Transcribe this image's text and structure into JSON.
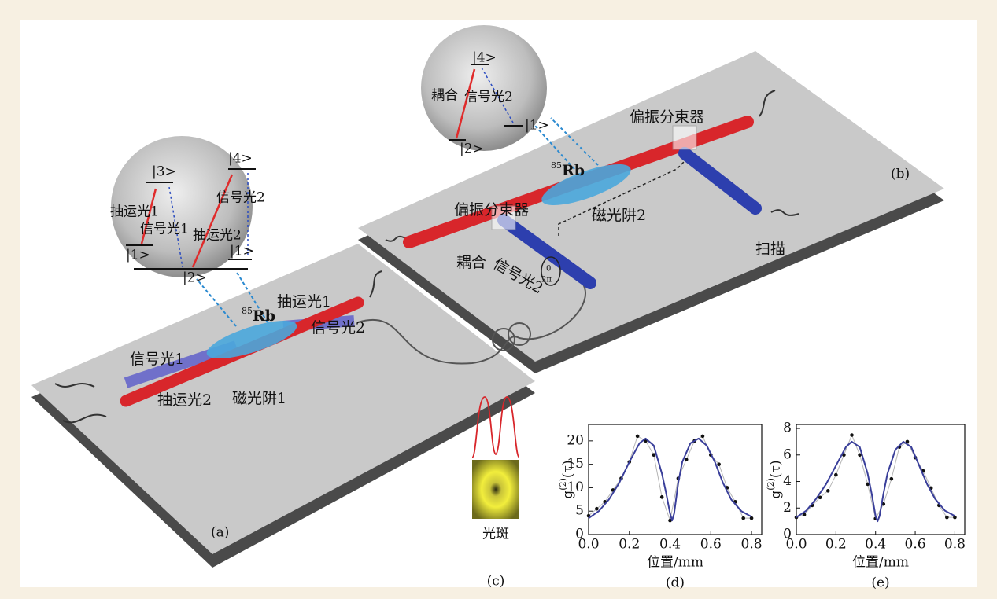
{
  "panels": {
    "a": "(a)",
    "b": "(b)",
    "c": "(c)"
  },
  "labels": {
    "pump1": "抽运光1",
    "pump2": "抽运光2",
    "signal1": "信号光1",
    "signal2": "信号光2",
    "mot1": "磁光阱1",
    "mot2": "磁光阱2",
    "rb_mass": "85",
    "rb": "Rb",
    "pbs": "偏振分束器",
    "coupling": "耦合",
    "scan": "扫描",
    "spot": "光斑",
    "phase0": "0",
    "phase2pi": "2π",
    "level1": "|1>",
    "level2": "|2>",
    "level3": "|3>",
    "level4": "|4>"
  },
  "chart_data": [
    {
      "type": "scatter",
      "label": "(d)",
      "xlabel": "位置/mm",
      "ylabel": [
        "g",
        "(2)",
        "(τ)"
      ],
      "xlim": [
        0,
        0.85
      ],
      "ylim": [
        0,
        23.5
      ],
      "xticks": [
        {
          "value": 0,
          "label": "0.0"
        },
        0.2,
        0.4,
        0.6,
        0.8
      ],
      "yticks": [
        0,
        5,
        10,
        15,
        20
      ],
      "series": [
        {
          "style": "points",
          "color": "#111111",
          "x": [
            0,
            0.04,
            0.08,
            0.12,
            0.16,
            0.2,
            0.24,
            0.28,
            0.32,
            0.36,
            0.4,
            0.44,
            0.48,
            0.52,
            0.56,
            0.6,
            0.64,
            0.68,
            0.72,
            0.76,
            0.8
          ],
          "values": [
            4,
            5.5,
            7,
            9.5,
            12,
            15.5,
            21,
            20,
            17,
            8,
            3,
            12,
            16,
            20,
            21,
            17,
            15,
            10,
            7,
            3.5,
            3.5
          ]
        },
        {
          "style": "line",
          "color": "#3a3f9a",
          "x": [
            0,
            0.05,
            0.1,
            0.15,
            0.2,
            0.25,
            0.28,
            0.32,
            0.36,
            0.38,
            0.4,
            0.41,
            0.42,
            0.44,
            0.46,
            0.5,
            0.54,
            0.58,
            0.62,
            0.66,
            0.7,
            0.75,
            0.8
          ],
          "values": [
            3.5,
            5,
            7.5,
            11,
            15.5,
            19.5,
            20.5,
            19,
            13,
            9,
            4.5,
            3,
            4.5,
            11,
            15.5,
            19.5,
            20.5,
            19,
            15.5,
            11,
            7.5,
            5,
            3.8
          ]
        }
      ]
    },
    {
      "type": "scatter",
      "label": "(e)",
      "xlabel": "位置/mm",
      "ylabel": [
        "g",
        "(2)",
        "(τ)"
      ],
      "xlim": [
        0,
        0.85
      ],
      "ylim": [
        0,
        8.3
      ],
      "xticks": [
        {
          "value": 0,
          "label": "0.0"
        },
        0.2,
        0.4,
        0.6,
        0.8
      ],
      "yticks": [
        0,
        2,
        4,
        6,
        8
      ],
      "series": [
        {
          "style": "points",
          "color": "#111111",
          "x": [
            0,
            0.04,
            0.08,
            0.12,
            0.16,
            0.2,
            0.24,
            0.28,
            0.32,
            0.36,
            0.4,
            0.44,
            0.48,
            0.52,
            0.56,
            0.6,
            0.64,
            0.68,
            0.72,
            0.76,
            0.8
          ],
          "values": [
            1.3,
            1.5,
            2.2,
            2.8,
            3.3,
            4.5,
            6,
            7.5,
            6,
            3.8,
            1.2,
            2.3,
            4.2,
            6.6,
            7,
            5.8,
            4.8,
            3.5,
            2.2,
            1.3,
            1.3
          ]
        },
        {
          "style": "line",
          "color": "#3a3f9a",
          "x": [
            0,
            0.05,
            0.1,
            0.15,
            0.2,
            0.25,
            0.28,
            0.32,
            0.36,
            0.38,
            0.4,
            0.41,
            0.42,
            0.44,
            0.46,
            0.5,
            0.54,
            0.58,
            0.62,
            0.66,
            0.7,
            0.75,
            0.8
          ],
          "values": [
            1.3,
            1.8,
            2.7,
            3.8,
            5.2,
            6.6,
            7,
            6.6,
            4.6,
            3.1,
            1.4,
            1,
            1.4,
            3.1,
            4.6,
            6.4,
            7,
            6.6,
            5.2,
            3.8,
            2.7,
            1.8,
            1.4
          ]
        }
      ]
    }
  ]
}
